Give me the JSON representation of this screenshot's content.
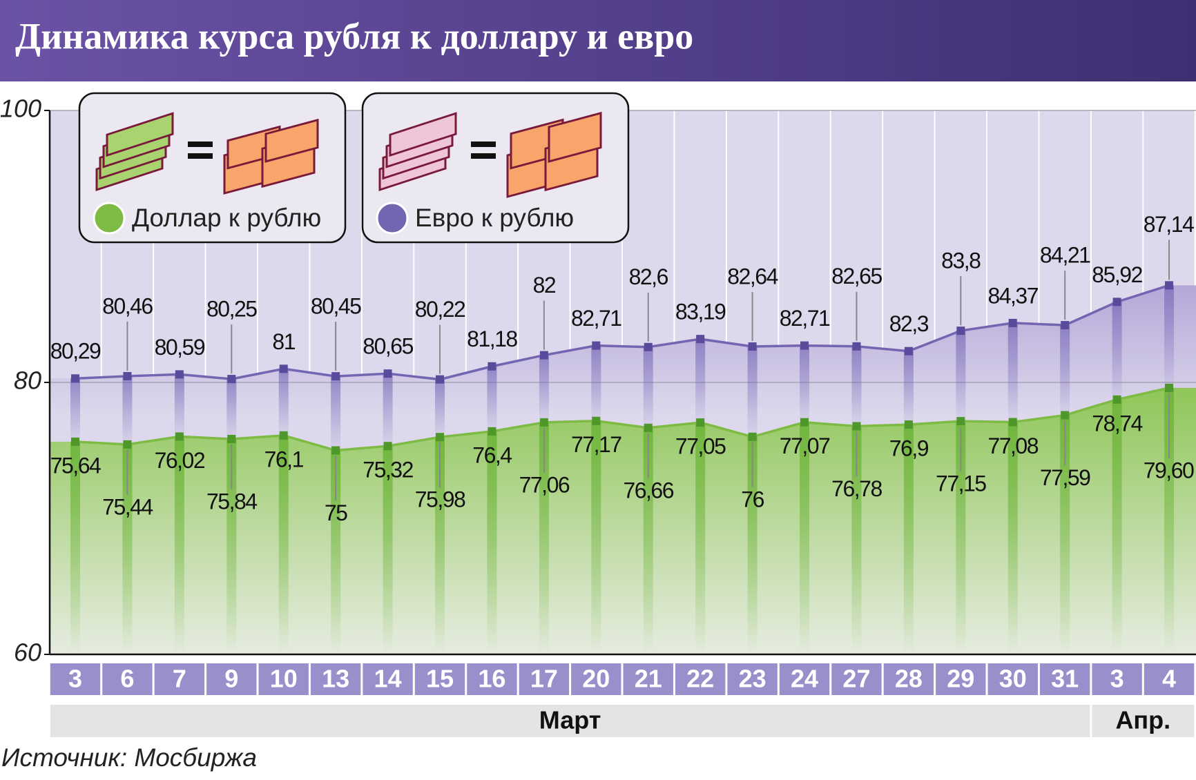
{
  "chart_data": {
    "type": "line",
    "title": "Динамика курса рубля к доллару и евро",
    "source": "Источник: Мосбиржа",
    "categories": [
      "3",
      "6",
      "7",
      "9",
      "10",
      "13",
      "14",
      "15",
      "16",
      "17",
      "20",
      "21",
      "22",
      "23",
      "24",
      "27",
      "28",
      "29",
      "30",
      "31",
      "3",
      "4"
    ],
    "x_groups": [
      {
        "label": "Март",
        "span": 20
      },
      {
        "label": "Апр.",
        "span": 2
      }
    ],
    "series": [
      {
        "name": "Евро к рублю",
        "color": "#7465b3",
        "values": [
          80.29,
          80.46,
          80.59,
          80.25,
          81,
          80.45,
          80.65,
          80.22,
          81.18,
          82,
          82.71,
          82.6,
          83.19,
          82.64,
          82.71,
          82.65,
          82.3,
          83.8,
          84.37,
          84.21,
          85.92,
          87.14
        ],
        "value_labels": [
          "80,29",
          "80,46",
          "80,59",
          "80,25",
          "81",
          "80,45",
          "80,65",
          "80,22",
          "81,18",
          "82",
          "82,71",
          "82,6",
          "83,19",
          "82,64",
          "82,71",
          "82,65",
          "82,3",
          "83,8",
          "84,37",
          "84,21",
          "85,92",
          "87,14"
        ]
      },
      {
        "name": "Доллар к рублю",
        "color": "#7dbb45",
        "values": [
          75.64,
          75.44,
          76.02,
          75.84,
          76.1,
          75,
          75.32,
          75.98,
          76.4,
          77.06,
          77.17,
          76.66,
          77.05,
          76,
          77.07,
          76.78,
          76.9,
          77.15,
          77.08,
          77.59,
          78.74,
          79.6
        ],
        "value_labels": [
          "75,64",
          "75,44",
          "76,02",
          "75,84",
          "76,1",
          "75",
          "75,32",
          "75,98",
          "76,4",
          "77,06",
          "77,17",
          "76,66",
          "77,05",
          "76",
          "77,07",
          "76,78",
          "76,9",
          "77,15",
          "77,08",
          "77,59",
          "78,74",
          "79,60"
        ]
      }
    ],
    "highlight_last_color": "#7b1c3b",
    "ylim": [
      60,
      100
    ],
    "yticks": [
      60,
      80,
      100
    ],
    "grid": true
  }
}
